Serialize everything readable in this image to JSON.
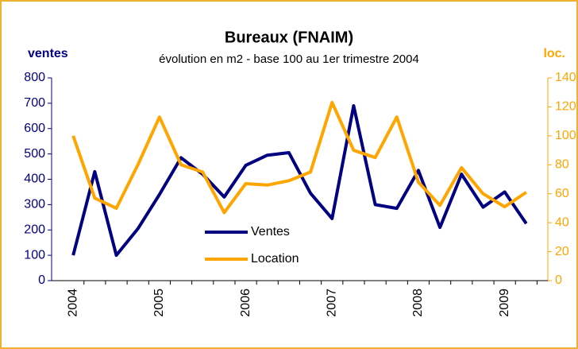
{
  "chart_data": {
    "type": "line",
    "title": "Bureaux (FNAIM)",
    "subtitle": "évolution en m2 - base 100 au 1er trimestre 2004",
    "ylabel": "ventes",
    "y2label": "loc.",
    "categories": [
      "2004",
      null,
      null,
      null,
      "2005",
      null,
      null,
      null,
      "2006",
      null,
      null,
      null,
      "2007",
      null,
      null,
      null,
      "2008",
      null,
      null,
      null,
      "2009",
      null
    ],
    "series": [
      {
        "name": "Ventes",
        "color": "#000080",
        "values": [
          100,
          430,
          100,
          205,
          340,
          485,
          420,
          330,
          455,
          495,
          505,
          345,
          245,
          690,
          300,
          285,
          435,
          210,
          420,
          290,
          350,
          225
        ]
      },
      {
        "name": "Location",
        "color": "#ffa500",
        "axis": "y2",
        "values": [
          100,
          57,
          50,
          80,
          113,
          80,
          75,
          47,
          67,
          66,
          69,
          75,
          123,
          90,
          85,
          113,
          68,
          52,
          78,
          60,
          51,
          61
        ]
      }
    ],
    "ylim": [
      0,
      800
    ],
    "yticks": [
      0,
      100,
      200,
      300,
      400,
      500,
      600,
      700,
      800
    ],
    "y2lim": [
      0,
      140
    ],
    "y2ticks": [
      0,
      20,
      40,
      60,
      80,
      100,
      120,
      140
    ]
  }
}
